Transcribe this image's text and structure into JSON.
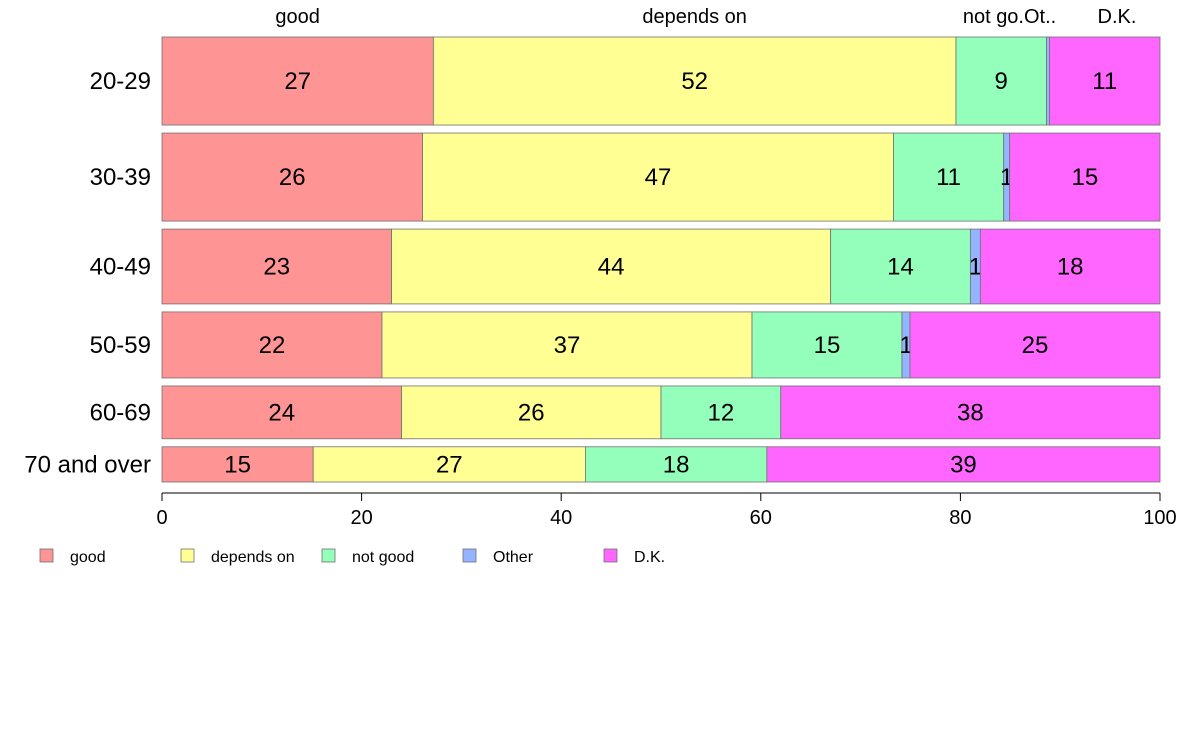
{
  "chart_data": {
    "type": "bar",
    "orientation": "horizontal",
    "stacked": true,
    "categories": [
      "20-29",
      "30-39",
      "40-49",
      "50-59",
      "60-69",
      "70 and over"
    ],
    "series": [
      {
        "name": "good",
        "values": [
          27,
          26,
          23,
          22,
          24,
          15
        ],
        "color": "#ff9494"
      },
      {
        "name": "depends on",
        "values": [
          52,
          47,
          44,
          37,
          26,
          27
        ],
        "color": "#ffff94"
      },
      {
        "name": "not good",
        "values": [
          9,
          11,
          14,
          15,
          12,
          18
        ],
        "color": "#94ffbb"
      },
      {
        "name": "Other",
        "values": [
          0.3,
          0.6,
          1,
          0.8,
          0,
          0
        ],
        "color": "#94b4ff"
      },
      {
        "name": "D.K.",
        "values": [
          11,
          15,
          18,
          25,
          38,
          39
        ],
        "color": "#ff66ff"
      }
    ],
    "bar_labels": [
      [
        "27",
        "52",
        "9",
        "",
        "11"
      ],
      [
        "26",
        "47",
        "11",
        "1",
        "15"
      ],
      [
        "23",
        "44",
        "14",
        "1",
        "18"
      ],
      [
        "22",
        "37",
        "15",
        "1",
        "25"
      ],
      [
        "24",
        "26",
        "12",
        "",
        "38"
      ],
      [
        "15",
        "27",
        "18",
        "",
        "39"
      ]
    ],
    "top_labels": [
      "good",
      "depends on",
      "not go.",
      "Ot..",
      "D.K."
    ],
    "row_weights": [
      1,
      1,
      0.85,
      0.75,
      0.6,
      0.4
    ],
    "xlim": [
      0,
      100
    ],
    "x_ticks": [
      "0",
      "20",
      "40",
      "60",
      "80",
      "100"
    ],
    "x_tick_values": [
      0,
      20,
      40,
      60,
      80,
      100
    ],
    "legend": {
      "position": "bottom-left",
      "items": [
        "good",
        "depends on",
        "not good",
        "Other",
        "D.K."
      ]
    },
    "grid": false
  }
}
